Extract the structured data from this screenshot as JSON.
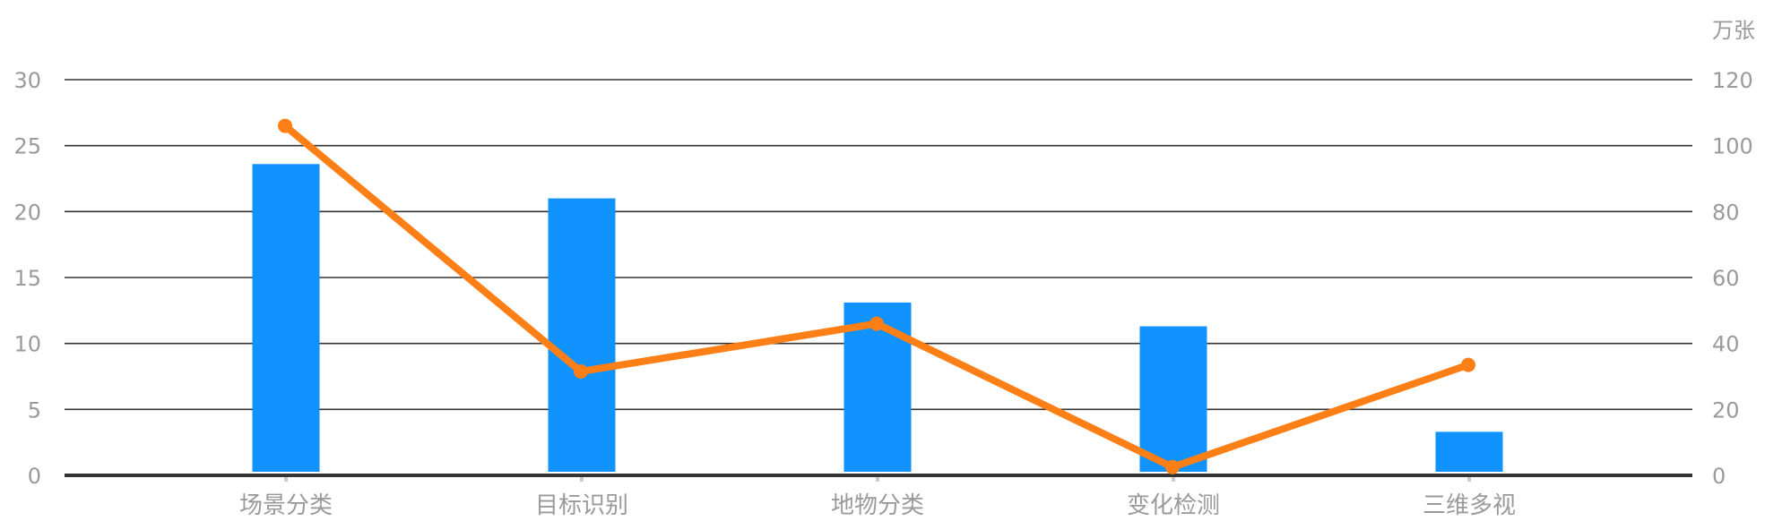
{
  "chart_data": {
    "type": "bar",
    "categories": [
      "场景分类",
      "目标识别",
      "地物分类",
      "变化检测",
      "三维多视"
    ],
    "series": [
      {
        "type": "bar",
        "axis": "left",
        "color": "#1092ff",
        "values": [
          23.6,
          21.0,
          13.1,
          11.3,
          3.3
        ]
      },
      {
        "type": "line",
        "axis": "right",
        "color": "#fd7f16",
        "values": [
          106,
          31.5,
          46,
          2.5,
          33.5
        ]
      }
    ],
    "y_left": {
      "ticks": [
        "0",
        "5",
        "10",
        "15",
        "20",
        "25",
        "30"
      ],
      "range": [
        0,
        30
      ]
    },
    "y_right": {
      "unit": "万张",
      "ticks": [
        "0",
        "20",
        "40",
        "60",
        "80",
        "100",
        "120"
      ],
      "range": [
        0,
        120
      ]
    },
    "grid": true
  }
}
